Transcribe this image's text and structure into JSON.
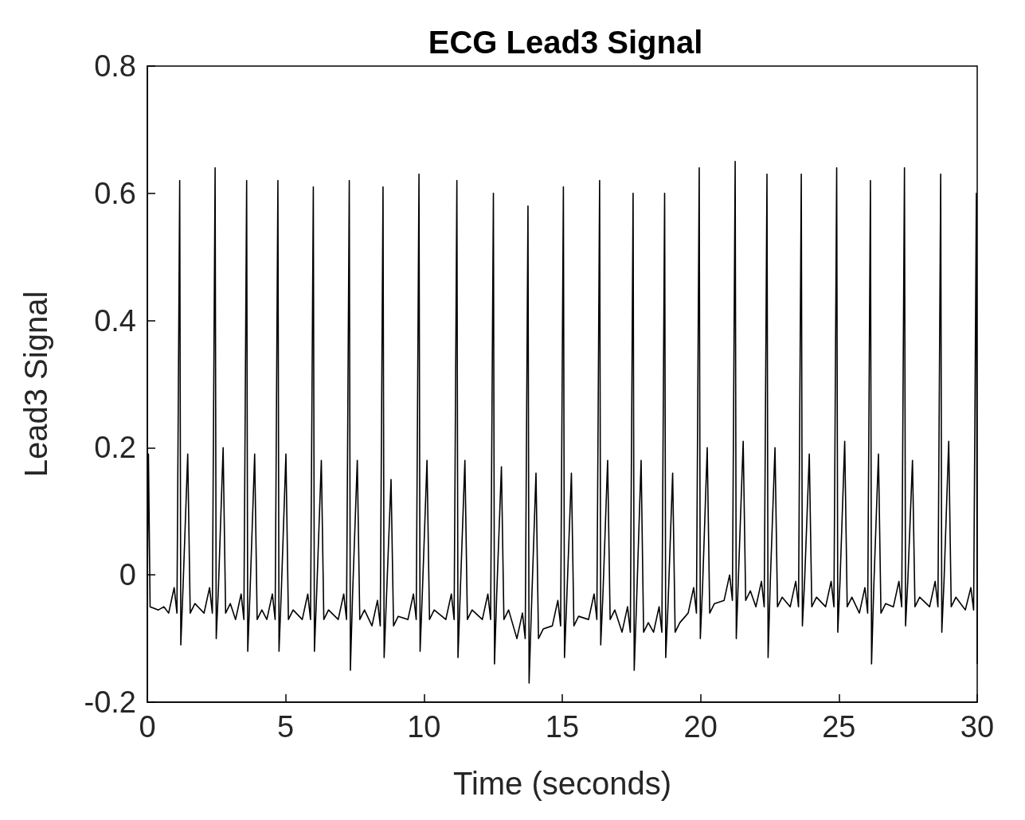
{
  "chart_data": {
    "type": "line",
    "title": "ECG Lead3 Signal",
    "xlabel": "Time (seconds)",
    "ylabel": "Lead3 Signal",
    "xlim": [
      0,
      30
    ],
    "xticks": [
      0,
      5,
      10,
      15,
      20,
      25,
      30
    ],
    "ylim": [
      -0.2,
      0.8
    ],
    "yticks": [
      -0.2,
      0,
      0.2,
      0.4,
      0.6,
      0.8
    ],
    "marker": "none",
    "line_style": "solid",
    "x": [
      0,
      0.04,
      0.1,
      0.4,
      0.6,
      0.77,
      0.97,
      1.07,
      1.17,
      1.21,
      1.29,
      1.46,
      1.55,
      1.72,
      2.05,
      2.25,
      2.35,
      2.45,
      2.49,
      2.57,
      2.74,
      2.83,
      3.0,
      3.19,
      3.39,
      3.49,
      3.59,
      3.63,
      3.71,
      3.88,
      3.97,
      4.14,
      4.32,
      4.52,
      4.62,
      4.72,
      4.76,
      4.84,
      5.01,
      5.1,
      5.27,
      5.6,
      5.8,
      5.9,
      6.0,
      6.04,
      6.12,
      6.29,
      6.38,
      6.55,
      6.9,
      7.1,
      7.2,
      7.3,
      7.34,
      7.42,
      7.59,
      7.68,
      7.85,
      8.12,
      8.32,
      8.42,
      8.52,
      8.56,
      8.64,
      8.81,
      8.9,
      9.07,
      9.42,
      9.62,
      9.72,
      9.82,
      9.86,
      9.94,
      10.11,
      10.2,
      10.37,
      10.79,
      10.99,
      11.09,
      11.19,
      11.23,
      11.31,
      11.48,
      11.57,
      11.74,
      12.11,
      12.31,
      12.41,
      12.51,
      12.55,
      12.63,
      12.8,
      12.89,
      13.06,
      13.36,
      13.56,
      13.66,
      13.76,
      13.8,
      13.88,
      14.05,
      14.14,
      14.31,
      14.64,
      14.84,
      14.94,
      15.04,
      15.08,
      15.16,
      15.33,
      15.42,
      15.59,
      15.95,
      16.15,
      16.25,
      16.35,
      16.39,
      16.47,
      16.64,
      16.73,
      16.9,
      17.16,
      17.36,
      17.46,
      17.56,
      17.6,
      17.68,
      17.85,
      17.94,
      18.11,
      18.3,
      18.5,
      18.6,
      18.7,
      18.74,
      18.82,
      18.99,
      19.08,
      19.25,
      19.55,
      19.75,
      19.85,
      19.95,
      19.99,
      20.07,
      20.24,
      20.33,
      20.5,
      20.85,
      21.05,
      21.15,
      21.25,
      21.29,
      21.37,
      21.54,
      21.63,
      21.8,
      22.0,
      22.2,
      22.3,
      22.4,
      22.44,
      22.52,
      22.69,
      22.78,
      22.95,
      23.24,
      23.44,
      23.54,
      23.64,
      23.68,
      23.76,
      23.93,
      24.02,
      24.19,
      24.52,
      24.72,
      24.82,
      24.92,
      24.96,
      25.04,
      25.21,
      25.3,
      25.47,
      25.74,
      25.94,
      26.04,
      26.14,
      26.18,
      26.26,
      26.43,
      26.52,
      26.69,
      26.97,
      27.17,
      27.27,
      27.37,
      27.41,
      27.49,
      27.66,
      27.75,
      27.92,
      28.28,
      28.48,
      28.58,
      28.68,
      28.72,
      28.8,
      28.97,
      29.06,
      29.23,
      29.57,
      29.77,
      29.87,
      29.97,
      30.0
    ],
    "series": [
      {
        "color": "#000000",
        "values": [
          -0.02,
          0.19,
          -0.05,
          -0.055,
          -0.05,
          -0.06,
          -0.02,
          -0.06,
          0.62,
          -0.11,
          -0.02,
          0.19,
          -0.06,
          -0.045,
          -0.06,
          -0.02,
          -0.06,
          0.64,
          -0.1,
          -0.02,
          0.2,
          -0.06,
          -0.045,
          -0.07,
          -0.03,
          -0.07,
          0.62,
          -0.12,
          -0.03,
          0.19,
          -0.07,
          -0.055,
          -0.07,
          -0.03,
          -0.07,
          0.62,
          -0.12,
          -0.03,
          0.19,
          -0.07,
          -0.055,
          -0.07,
          -0.03,
          -0.07,
          0.61,
          -0.12,
          -0.03,
          0.18,
          -0.07,
          -0.055,
          -0.07,
          -0.03,
          -0.07,
          0.62,
          -0.15,
          -0.03,
          0.18,
          -0.07,
          -0.055,
          -0.08,
          -0.04,
          -0.08,
          0.61,
          -0.13,
          -0.04,
          0.15,
          -0.08,
          -0.065,
          -0.07,
          -0.03,
          -0.07,
          0.63,
          -0.12,
          -0.03,
          0.18,
          -0.07,
          -0.055,
          -0.07,
          -0.03,
          -0.07,
          0.62,
          -0.13,
          -0.03,
          0.18,
          -0.07,
          -0.055,
          -0.07,
          -0.03,
          -0.07,
          0.6,
          -0.14,
          -0.03,
          0.17,
          -0.07,
          -0.055,
          -0.1,
          -0.06,
          -0.1,
          0.58,
          -0.17,
          -0.06,
          0.16,
          -0.1,
          -0.085,
          -0.08,
          -0.04,
          -0.08,
          0.61,
          -0.13,
          -0.04,
          0.16,
          -0.08,
          -0.065,
          -0.07,
          -0.03,
          -0.07,
          0.62,
          -0.11,
          -0.03,
          0.18,
          -0.07,
          -0.055,
          -0.09,
          -0.05,
          -0.09,
          0.6,
          -0.15,
          -0.05,
          0.18,
          -0.09,
          -0.075,
          -0.09,
          -0.05,
          -0.09,
          0.6,
          -0.13,
          -0.05,
          0.16,
          -0.09,
          -0.075,
          -0.06,
          -0.02,
          -0.06,
          0.64,
          -0.1,
          -0.02,
          0.2,
          -0.06,
          -0.045,
          -0.04,
          0.0,
          -0.04,
          0.65,
          -0.1,
          0.0,
          0.21,
          -0.04,
          -0.025,
          -0.05,
          -0.01,
          -0.05,
          0.63,
          -0.13,
          -0.01,
          0.2,
          -0.05,
          -0.035,
          -0.05,
          -0.01,
          -0.05,
          0.63,
          -0.08,
          -0.01,
          0.19,
          -0.05,
          -0.035,
          -0.05,
          -0.01,
          -0.05,
          0.64,
          -0.09,
          -0.01,
          0.21,
          -0.05,
          -0.035,
          -0.06,
          -0.02,
          -0.06,
          0.62,
          -0.14,
          -0.02,
          0.19,
          -0.06,
          -0.045,
          -0.05,
          -0.01,
          -0.05,
          0.64,
          -0.08,
          -0.01,
          0.18,
          -0.05,
          -0.035,
          -0.05,
          -0.01,
          -0.05,
          0.63,
          -0.09,
          -0.01,
          0.21,
          -0.05,
          -0.035,
          -0.055,
          -0.02,
          -0.055,
          0.6,
          -0.14
        ]
      }
    ]
  }
}
